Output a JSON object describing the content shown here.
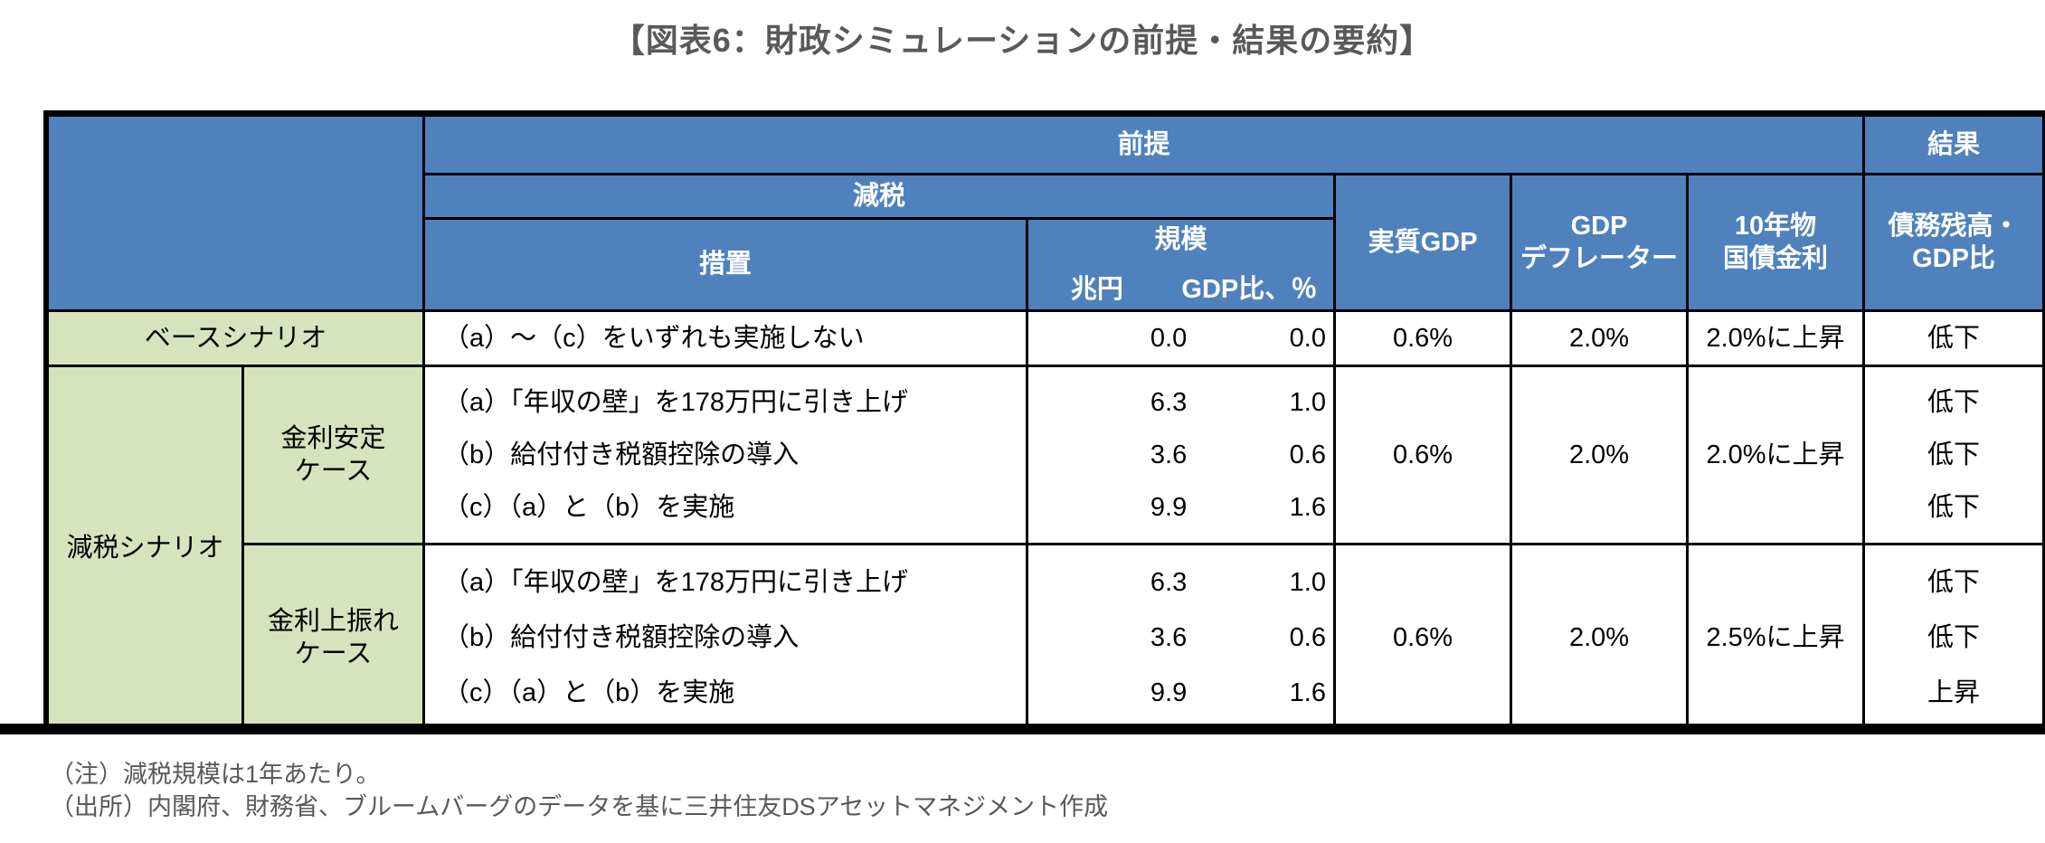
{
  "title": "【図表6：財政シミュレーションの前提・結果の要約】",
  "colors": {
    "header_blue": "#4f81bd",
    "scenario_green": "#d6e3bc",
    "note_gray": "#595959",
    "border_black": "#000000"
  },
  "header": {
    "assumption": "前提",
    "result": "結果",
    "tax_cut": "減税",
    "measure": "措置",
    "scale": "規模",
    "scale_unit_trillion": "兆円",
    "scale_unit_gdp": "GDP比、％",
    "real_gdp": "実質GDP",
    "gdp_deflator_line1": "GDP",
    "gdp_deflator_line2": "デフレーター",
    "jgb_line1": "10年物",
    "jgb_line2": "国債金利",
    "debt_line1": "債務残高・",
    "debt_line2": "GDP比"
  },
  "rows": {
    "base": {
      "scenario": "ベースシナリオ",
      "measure": "（a）～（c）をいずれも実施しない",
      "trillion": "0.0",
      "gdp_ratio": "0.0",
      "real_gdp": "0.6%",
      "deflator": "2.0%",
      "jgb": "2.0%に上昇",
      "result": "低下"
    },
    "tax_scenario_label": "減税シナリオ",
    "stable": {
      "case_line1": "金利安定",
      "case_line2": "ケース",
      "measures": [
        "（a）「年収の壁」を178万円に引き上げ",
        "（b）給付付き税額控除の導入",
        "（c）（a）と（b）を実施"
      ],
      "trillions": [
        "6.3",
        "3.6",
        "9.9"
      ],
      "gdp_ratios": [
        "1.0",
        "0.6",
        "1.6"
      ],
      "real_gdp": "0.6%",
      "deflator": "2.0%",
      "jgb": "2.0%に上昇",
      "results": [
        "低下",
        "低下",
        "低下"
      ]
    },
    "upside": {
      "case_line1": "金利上振れ",
      "case_line2": "ケース",
      "measures": [
        "（a）「年収の壁」を178万円に引き上げ",
        "（b）給付付き税額控除の導入",
        "（c）（a）と（b）を実施"
      ],
      "trillions": [
        "6.3",
        "3.6",
        "9.9"
      ],
      "gdp_ratios": [
        "1.0",
        "0.6",
        "1.6"
      ],
      "real_gdp": "0.6%",
      "deflator": "2.0%",
      "jgb": "2.5%に上昇",
      "results": [
        "低下",
        "低下",
        "上昇"
      ]
    }
  },
  "notes": [
    "（注）減税規模は1年あたり。",
    "（出所）内閣府、財務省、ブルームバーグのデータを基に三井住友DSアセットマネジメント作成"
  ]
}
